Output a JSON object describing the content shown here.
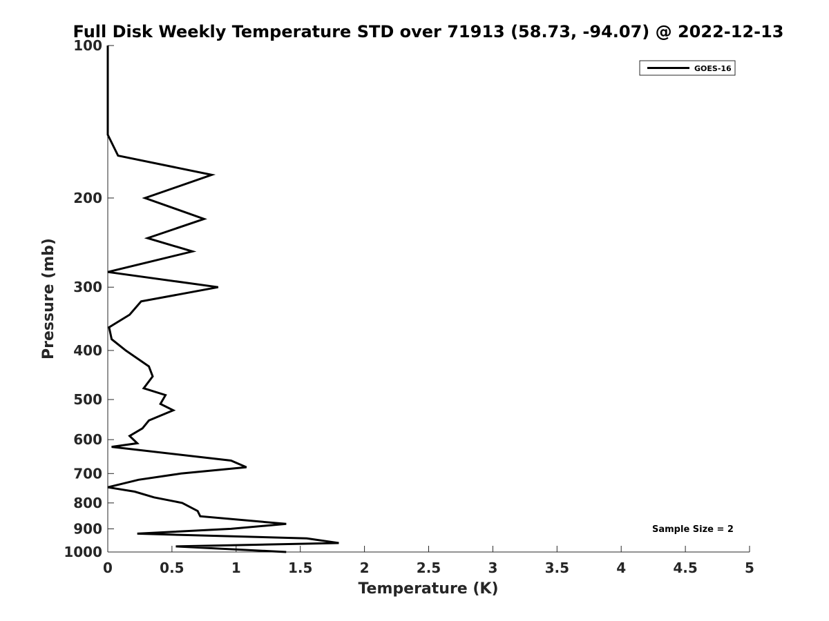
{
  "chart_data": {
    "type": "line",
    "title": "Full Disk Weekly Temperature STD over 71913 (58.73, -94.07) @ 2022-12-13",
    "xlabel": "Temperature (K)",
    "ylabel": "Pressure (mb)",
    "xlim": [
      0,
      5
    ],
    "ylim": [
      100,
      1000
    ],
    "y_scale": "log",
    "y_reversed": true,
    "x_ticks": [
      "0",
      "0.5",
      "1",
      "1.5",
      "2",
      "2.5",
      "3",
      "3.5",
      "4",
      "4.5",
      "5"
    ],
    "y_ticks": [
      "100",
      "200",
      "300",
      "400",
      "500",
      "600",
      "700",
      "800",
      "900",
      "1000"
    ],
    "grid": false,
    "legend_position": "top-right",
    "annotation": "Sample Size = 2",
    "series": [
      {
        "name": "GOES-16",
        "color": "#000000",
        "points": [
          [
            0.0,
            100
          ],
          [
            0.0,
            125
          ],
          [
            0.0,
            150
          ],
          [
            0.08,
            165
          ],
          [
            0.81,
            180
          ],
          [
            0.29,
            200
          ],
          [
            0.75,
            220
          ],
          [
            0.31,
            240
          ],
          [
            0.66,
            255
          ],
          [
            0.0,
            280
          ],
          [
            0.86,
            300
          ],
          [
            0.26,
            320
          ],
          [
            0.17,
            340
          ],
          [
            0.01,
            360
          ],
          [
            0.03,
            380
          ],
          [
            0.14,
            400
          ],
          [
            0.32,
            430
          ],
          [
            0.35,
            450
          ],
          [
            0.28,
            475
          ],
          [
            0.45,
            490
          ],
          [
            0.41,
            510
          ],
          [
            0.51,
            525
          ],
          [
            0.32,
            550
          ],
          [
            0.27,
            570
          ],
          [
            0.17,
            590
          ],
          [
            0.23,
            610
          ],
          [
            0.03,
            620
          ],
          [
            0.96,
            660
          ],
          [
            1.08,
            680
          ],
          [
            0.57,
            700
          ],
          [
            0.24,
            720
          ],
          [
            0.0,
            745
          ],
          [
            0.21,
            760
          ],
          [
            0.36,
            780
          ],
          [
            0.58,
            800
          ],
          [
            0.7,
            830
          ],
          [
            0.72,
            850
          ],
          [
            1.39,
            880
          ],
          [
            0.96,
            900
          ],
          [
            0.23,
            920
          ],
          [
            1.55,
            940
          ],
          [
            1.8,
            960
          ],
          [
            0.53,
            975
          ],
          [
            1.39,
            1000
          ]
        ]
      }
    ]
  }
}
